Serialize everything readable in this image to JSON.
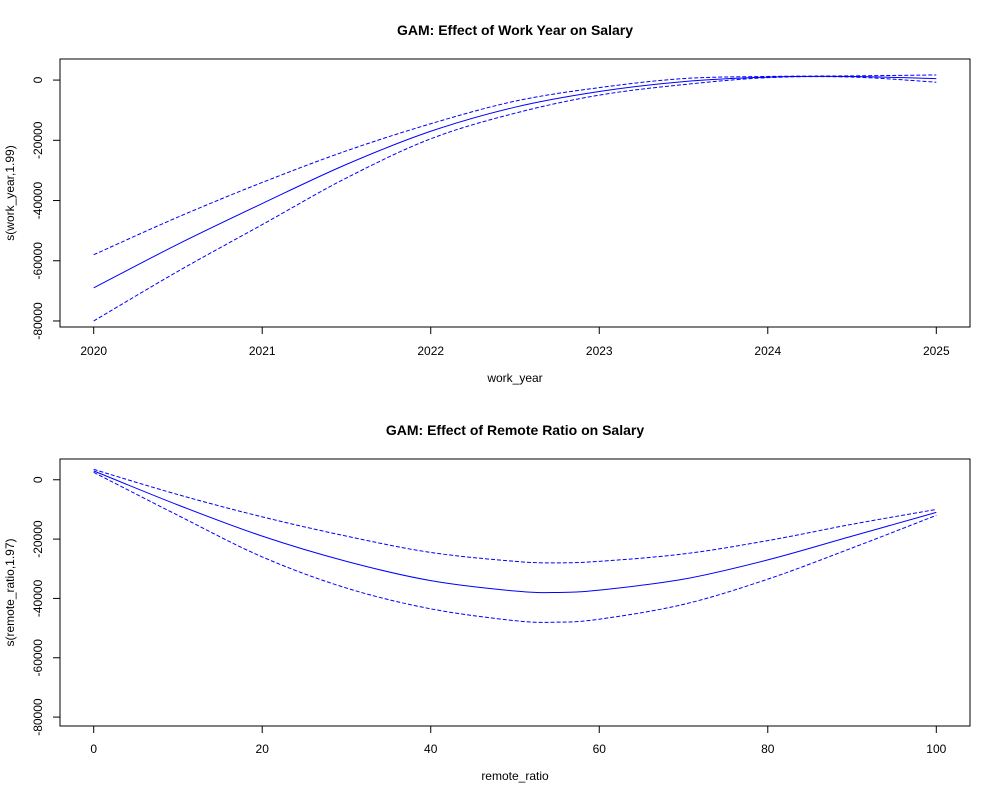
{
  "chart_data": [
    {
      "type": "line",
      "title": "GAM: Effect of Work Year on Salary",
      "xlabel": "work_year",
      "ylabel": "s(work_year,1.99)",
      "xlim": [
        2020,
        2025
      ],
      "ylim": [
        -82000,
        7000
      ],
      "x_ticks": [
        2020,
        2021,
        2022,
        2023,
        2024,
        2025
      ],
      "y_ticks": [
        0,
        -20000,
        -40000,
        -60000,
        -80000
      ],
      "grid": false,
      "line_color": "#0000ff",
      "x": [
        2020,
        2020.5,
        2021,
        2021.5,
        2022,
        2022.5,
        2023,
        2023.5,
        2024,
        2024.5,
        2025
      ],
      "series": [
        {
          "role": "fit",
          "style": "solid",
          "values": [
            -69000,
            -54500,
            -41000,
            -28000,
            -17000,
            -9000,
            -3800,
            -500,
            1000,
            1200,
            500
          ]
        },
        {
          "role": "upper",
          "style": "dashed",
          "values": [
            -58000,
            -45500,
            -34000,
            -23500,
            -14500,
            -7000,
            -2500,
            500,
            1200,
            1400,
            1700
          ]
        },
        {
          "role": "lower",
          "style": "dashed",
          "values": [
            -80000,
            -63500,
            -48000,
            -32500,
            -19500,
            -11000,
            -5000,
            -1500,
            800,
            1000,
            -700
          ]
        }
      ]
    },
    {
      "type": "line",
      "title": "GAM: Effect of Remote Ratio on Salary",
      "xlabel": "remote_ratio",
      "ylabel": "s(remote_ratio,1.97)",
      "xlim": [
        0,
        100
      ],
      "ylim": [
        -83000,
        7000
      ],
      "x_ticks": [
        0,
        20,
        40,
        60,
        80,
        100
      ],
      "y_ticks": [
        0,
        -20000,
        -40000,
        -60000,
        -80000
      ],
      "grid": false,
      "line_color": "#0000ff",
      "x": [
        0,
        10,
        20,
        30,
        40,
        50,
        55,
        60,
        70,
        80,
        90,
        100
      ],
      "series": [
        {
          "role": "fit",
          "style": "solid",
          "values": [
            3000,
            -8500,
            -19000,
            -27500,
            -34000,
            -37500,
            -38000,
            -37200,
            -33500,
            -27000,
            -19000,
            -11000
          ]
        },
        {
          "role": "upper",
          "style": "dashed",
          "values": [
            3500,
            -5000,
            -12500,
            -19000,
            -24500,
            -27500,
            -28000,
            -27500,
            -25000,
            -20500,
            -15000,
            -10000
          ]
        },
        {
          "role": "lower",
          "style": "dashed",
          "values": [
            2500,
            -12000,
            -26000,
            -36500,
            -43500,
            -47500,
            -48000,
            -47000,
            -42000,
            -33500,
            -23000,
            -12000
          ]
        }
      ]
    }
  ]
}
